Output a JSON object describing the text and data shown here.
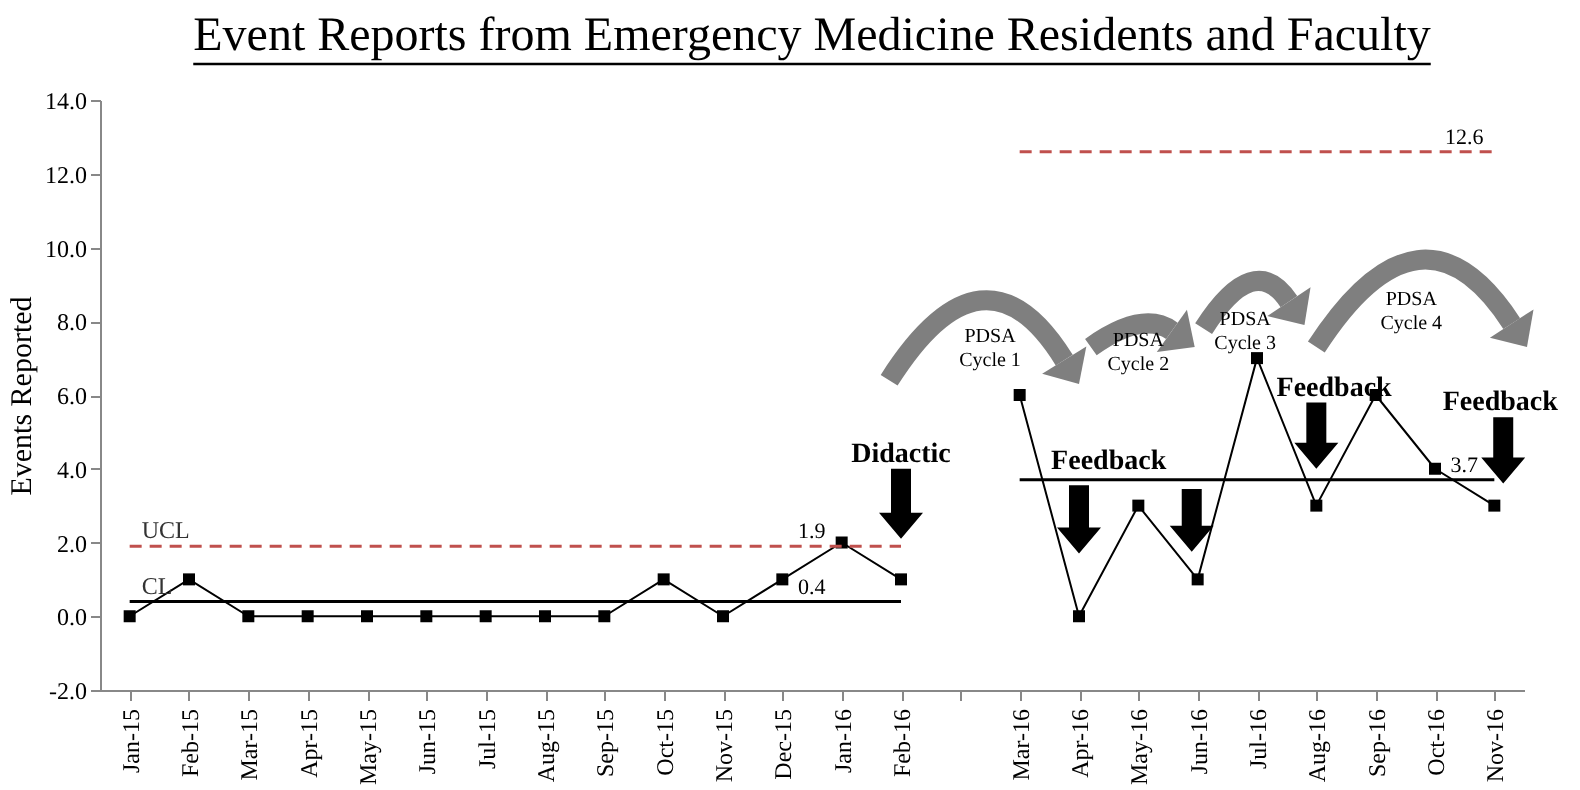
{
  "chart_data": {
    "type": "line",
    "title": "Event Reports from Emergency Medicine Residents and Faculty",
    "ylabel": "Events Reported",
    "categories": [
      "Jan-15",
      "Feb-15",
      "Mar-15",
      "Apr-15",
      "May-15",
      "Jun-15",
      "Jul-15",
      "Aug-15",
      "Sep-15",
      "Oct-15",
      "Nov-15",
      "Dec-15",
      "Jan-16",
      "Feb-16",
      null,
      "Mar-16",
      "Apr-16",
      "May-16",
      "Jun-16",
      "Jul-16",
      "Aug-16",
      "Sep-16",
      "Oct-16",
      "Nov-16"
    ],
    "series": [
      {
        "color": "#000000",
        "marker": "square",
        "line_style": "solid",
        "values": [
          0,
          1,
          0,
          0,
          0,
          0,
          0,
          0,
          0,
          1,
          0,
          1,
          2,
          1,
          null,
          6,
          0,
          3,
          1,
          7,
          3,
          6,
          4,
          3
        ]
      },
      {
        "name": "UCL",
        "color": "#c0504d",
        "marker": "none",
        "line_style": "dashed",
        "values": [
          1.9,
          1.9,
          1.9,
          1.9,
          1.9,
          1.9,
          1.9,
          1.9,
          1.9,
          1.9,
          1.9,
          1.9,
          1.9,
          1.9,
          null,
          12.6,
          12.6,
          12.6,
          12.6,
          12.6,
          12.6,
          12.6,
          12.6,
          12.6
        ]
      },
      {
        "name": "CL",
        "color": "#000000",
        "marker": "none",
        "line_style": "solid",
        "values": [
          0.4,
          0.4,
          0.4,
          0.4,
          0.4,
          0.4,
          0.4,
          0.4,
          0.4,
          0.4,
          0.4,
          0.4,
          0.4,
          0.4,
          null,
          3.7,
          3.7,
          3.7,
          3.7,
          3.7,
          3.7,
          3.7,
          3.7,
          3.7
        ]
      }
    ],
    "ylim": [
      -2,
      14
    ],
    "yticks": [
      {
        "value": -2,
        "label": "-2.0"
      },
      {
        "value": 0,
        "label": "0.0"
      },
      {
        "value": 2,
        "label": "2.0"
      },
      {
        "value": 4,
        "label": "4.0"
      },
      {
        "value": 6,
        "label": "6.0"
      },
      {
        "value": 8,
        "label": "8.0"
      },
      {
        "value": 10,
        "label": "10.0"
      },
      {
        "value": 12,
        "label": "12.0"
      },
      {
        "value": 14,
        "label": "14.0"
      }
    ],
    "annotations": [
      {
        "text": "1.9",
        "x": "Jan-16",
        "y": 1.9
      },
      {
        "text": "0.4",
        "x": "Jan-16",
        "y": 0.4
      },
      {
        "text": "12.6",
        "x": "Nov-16",
        "y": 12.6
      },
      {
        "text": "3.7",
        "x": "Nov-16",
        "y": 3.7
      },
      "Didactic",
      "Feedback",
      "Feedback",
      "Feedback",
      "PDSA\nCycle 1",
      "PDSA\nCycle 2",
      "PDSA\nCycle 3",
      "PDSA\nCycle 4"
    ]
  }
}
